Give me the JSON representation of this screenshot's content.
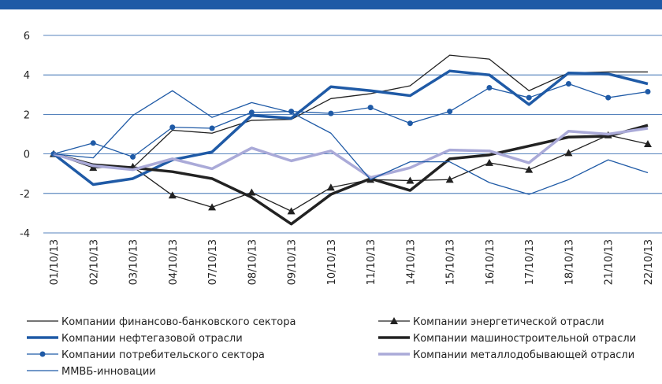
{
  "chart_data": {
    "type": "line",
    "categories": [
      "01/10/13",
      "02/10/13",
      "03/10/13",
      "04/10/13",
      "07/10/13",
      "08/10/13",
      "09/10/13",
      "10/10/13",
      "11/10/13",
      "14/10/13",
      "15/10/13",
      "16/10/13",
      "17/10/13",
      "18/10/13",
      "21/10/13",
      "22/10/13"
    ],
    "ylim": [
      -4,
      6
    ],
    "yticks": [
      -4,
      -2,
      0,
      2,
      4,
      6
    ],
    "grid": true,
    "grid_color": "#1f5aa6",
    "series": [
      {
        "name": "Компании финансово-банковского сектора",
        "color": "#222222",
        "line_width": 1.3,
        "marker": "none",
        "values": [
          0,
          -0.6,
          -0.7,
          1.2,
          1.05,
          1.7,
          1.75,
          2.8,
          3.05,
          3.45,
          5.0,
          4.8,
          3.2,
          4.1,
          4.15,
          4.15
        ]
      },
      {
        "name": "Компании энергетической отрасли",
        "color": "#222222",
        "line_width": 1.3,
        "marker": "triangle",
        "values": [
          0,
          -0.7,
          -0.65,
          -2.1,
          -2.7,
          -1.95,
          -2.9,
          -1.7,
          -1.3,
          -1.35,
          -1.3,
          -0.45,
          -0.8,
          0.05,
          0.95,
          0.5
        ]
      },
      {
        "name": "Компании нефтегазовой отрасли",
        "color": "#1f5aa6",
        "line_width": 3.5,
        "marker": "none",
        "values": [
          0,
          -1.55,
          -1.25,
          -0.3,
          0.1,
          1.95,
          1.8,
          3.4,
          3.2,
          2.95,
          4.2,
          4.0,
          2.5,
          4.1,
          4.05,
          3.55
        ]
      },
      {
        "name": "Компании машиностроительной отрасли",
        "color": "#222222",
        "line_width": 3.5,
        "marker": "none",
        "values": [
          0,
          -0.55,
          -0.7,
          -0.9,
          -1.25,
          -2.2,
          -3.55,
          -2.05,
          -1.25,
          -1.85,
          -0.25,
          -0.05,
          0.4,
          0.85,
          0.9,
          1.45
        ]
      },
      {
        "name": "Компании потребительского сектора",
        "color": "#1f5aa6",
        "line_width": 1.3,
        "marker": "circle",
        "values": [
          0,
          0.55,
          -0.15,
          1.35,
          1.3,
          2.1,
          2.15,
          2.05,
          2.35,
          1.55,
          2.15,
          3.35,
          2.85,
          3.55,
          2.85,
          3.15
        ]
      },
      {
        "name": "Компании металлодобывающей отрасли",
        "color": "#aaaad8",
        "line_width": 3.5,
        "marker": "none",
        "values": [
          0,
          -0.6,
          -0.8,
          -0.25,
          -0.75,
          0.3,
          -0.35,
          0.15,
          -1.2,
          -0.7,
          0.2,
          0.15,
          -0.45,
          1.15,
          1.0,
          1.3
        ]
      },
      {
        "name": "ММВБ-инновации",
        "color": "#1f5aa6",
        "line_width": 1.3,
        "marker": "none",
        "values": [
          0,
          -0.2,
          1.95,
          3.2,
          1.85,
          2.6,
          2.1,
          1.05,
          -1.3,
          -0.4,
          -0.4,
          -1.45,
          -2.05,
          -1.3,
          -0.3,
          -0.95
        ]
      }
    ]
  }
}
